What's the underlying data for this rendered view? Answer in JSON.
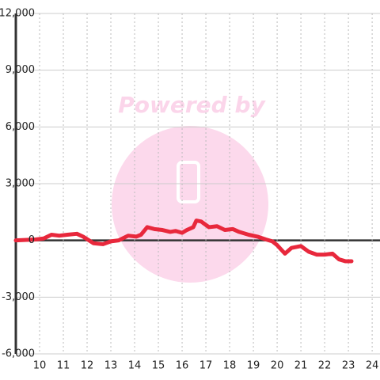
{
  "chart_data": {
    "type": "line",
    "watermark": "Powered by",
    "x": [
      9,
      9.83,
      10.17,
      10.5,
      10.83,
      11.17,
      11.57,
      11.83,
      12.27,
      12.67,
      13,
      13.33,
      13.73,
      14.07,
      14.27,
      14.53,
      14.83,
      15.17,
      15.5,
      15.73,
      16,
      16.2,
      16.47,
      16.6,
      16.8,
      17.13,
      17.47,
      17.8,
      18.13,
      18.4,
      18.8,
      19.17,
      19.53,
      19.8,
      20,
      20.33,
      20.6,
      21,
      21.33,
      21.67,
      22,
      22.33,
      22.6,
      22.87,
      23.13
    ],
    "series": [
      {
        "color": "#e8283c",
        "values": [
          0,
          50,
          100,
          300,
          250,
          300,
          350,
          200,
          -150,
          -200,
          -50,
          0,
          250,
          200,
          300,
          700,
          600,
          550,
          450,
          500,
          400,
          550,
          700,
          1050,
          1000,
          700,
          750,
          550,
          600,
          450,
          300,
          200,
          50,
          -50,
          -250,
          -700,
          -400,
          -300,
          -600,
          -750,
          -750,
          -700,
          -1000,
          -1100,
          -1100
        ]
      }
    ],
    "xlim": [
      9,
      24.33
    ],
    "ylim": [
      -6000,
      12000
    ],
    "xticks": [
      10,
      11,
      12,
      13,
      14,
      15,
      16,
      17,
      18,
      19,
      20,
      21,
      22,
      23,
      24
    ],
    "yticks": [
      {
        "value": -6000,
        "label": "-6,000"
      },
      {
        "value": -3000,
        "label": "-3,000"
      },
      0,
      {
        "value": 3000,
        "label": "3,000"
      },
      {
        "value": 6000,
        "label": "6,000"
      },
      {
        "value": 9000,
        "label": "9,000"
      },
      {
        "value": 12000,
        "label": "12,000"
      }
    ],
    "grid": true
  }
}
